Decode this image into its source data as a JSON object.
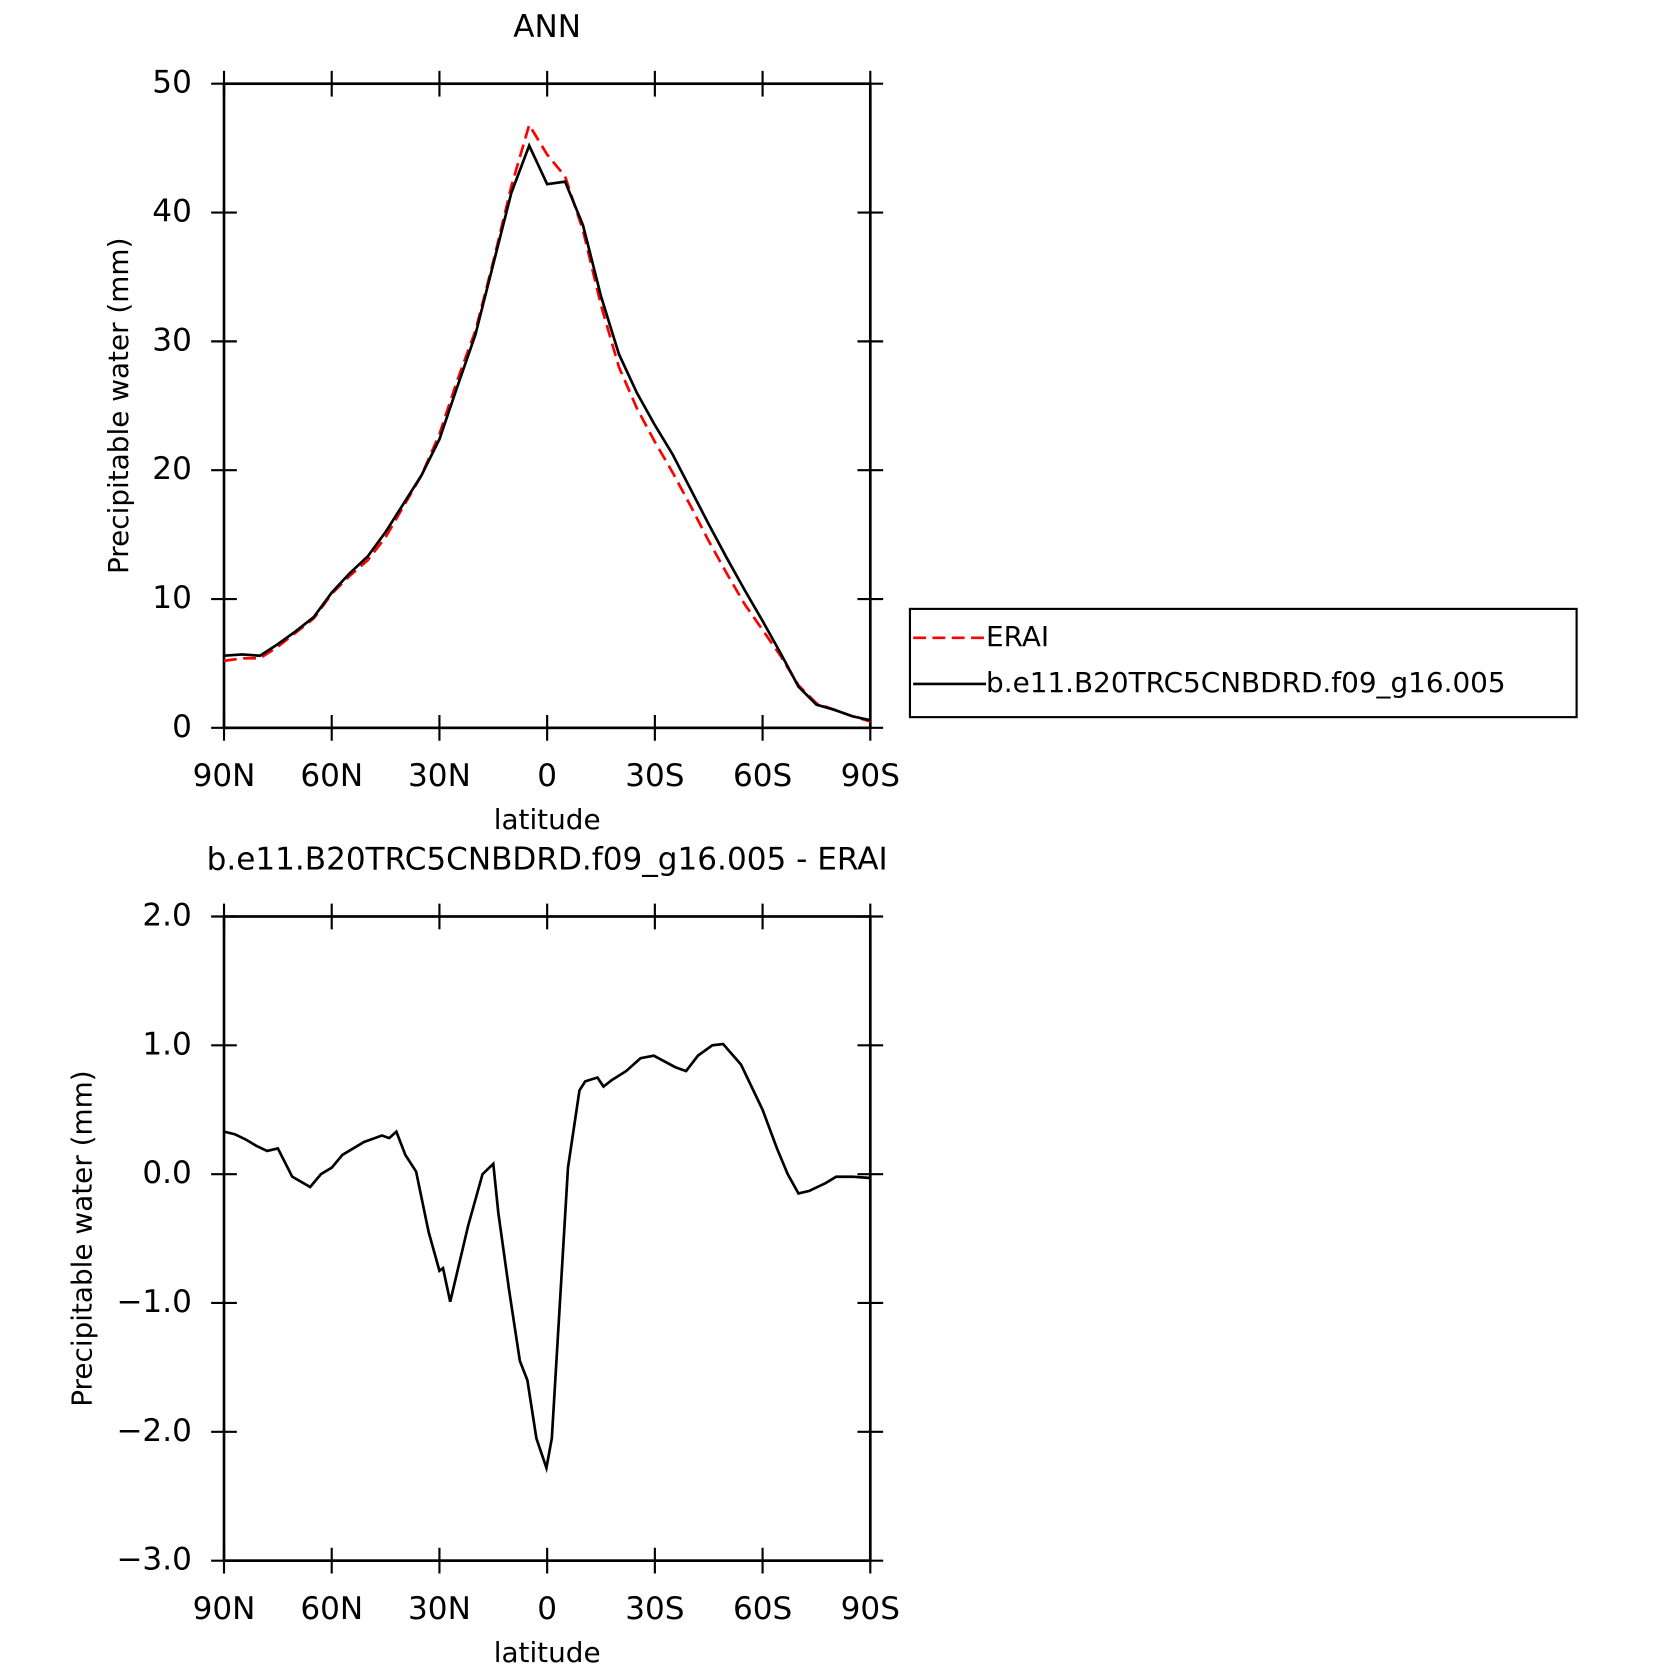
{
  "chart_data": [
    {
      "type": "line",
      "title": "ANN",
      "xlabel": "latitude",
      "ylabel": "Precipitable water (mm)",
      "x": [
        90,
        85,
        80,
        75,
        70,
        65,
        60,
        55,
        50,
        45,
        40,
        35,
        30,
        25,
        20,
        15,
        10,
        5,
        0,
        -5,
        -10,
        -15,
        -20,
        -25,
        -30,
        -35,
        -40,
        -45,
        -50,
        -55,
        -60,
        -65,
        -70,
        -75,
        -80,
        -85,
        -90
      ],
      "series": [
        {
          "name": "ERAI",
          "color": "#ff0000",
          "dash": true,
          "values": [
            5.2,
            5.4,
            5.4,
            6.3,
            7.4,
            8.5,
            10.4,
            11.8,
            13.0,
            14.8,
            17.2,
            19.6,
            22.8,
            27.0,
            30.8,
            36.2,
            42.0,
            46.8,
            44.5,
            42.8,
            38.6,
            32.8,
            28.0,
            24.8,
            22.2,
            19.8,
            17.2,
            14.5,
            12.0,
            9.6,
            7.6,
            5.6,
            3.3,
            1.9,
            1.4,
            0.9,
            0.5
          ]
        },
        {
          "name": "b.e11.B20TRC5CNBDRD.f09_g16.005",
          "color": "#000000",
          "dash": false,
          "values": [
            5.6,
            5.7,
            5.6,
            6.5,
            7.5,
            8.6,
            10.5,
            12.0,
            13.3,
            15.2,
            17.4,
            19.6,
            22.4,
            26.5,
            30.5,
            36.0,
            41.5,
            45.2,
            42.2,
            42.4,
            39.0,
            33.5,
            29.0,
            26.0,
            23.5,
            21.2,
            18.5,
            15.8,
            13.2,
            10.7,
            8.3,
            5.8,
            3.2,
            1.8,
            1.4,
            0.9,
            0.6
          ]
        }
      ],
      "xlim": [
        90,
        -90
      ],
      "xticks": [
        {
          "value": 90,
          "label": "90N"
        },
        {
          "value": 60,
          "label": "60N"
        },
        {
          "value": 30,
          "label": "30N"
        },
        0,
        {
          "value": -30,
          "label": "30S"
        },
        {
          "value": -60,
          "label": "60S"
        },
        {
          "value": -90,
          "label": "90S"
        }
      ],
      "ylim": [
        0,
        50
      ],
      "yticks": [
        0,
        10,
        20,
        30,
        40,
        50
      ],
      "legend": "right"
    },
    {
      "type": "line",
      "title": "b.e11.B20TRC5CNBDRD.f09_g16.005 - ERAI",
      "xlabel": "latitude",
      "ylabel": "Precipitable water (mm)",
      "x": [
        90,
        87,
        84,
        81,
        78,
        75,
        71,
        66,
        63,
        60,
        57,
        51,
        46,
        44,
        42,
        39.5,
        36.5,
        33,
        30,
        29,
        27,
        22,
        18,
        15,
        13.6,
        10.6,
        7.6,
        5.5,
        3,
        0.2,
        -1.3,
        -5.8,
        -9,
        -10.6,
        -14,
        -15.7,
        -18,
        -22,
        -26,
        -29.7,
        -35.7,
        -38.7,
        -42,
        -46,
        -49,
        -54,
        -60,
        -64,
        -67,
        -70,
        -73,
        -77.5,
        -80.5,
        -85,
        -90
      ],
      "series": [
        {
          "name": "b.e11.B20TRC5CNBDRD.f09_g16.005 - ERAI",
          "color": "#000000",
          "dash": false,
          "values": [
            0.33,
            0.31,
            0.27,
            0.22,
            0.18,
            0.2,
            -0.02,
            -0.1,
            0.0,
            0.05,
            0.15,
            0.25,
            0.3,
            0.28,
            0.33,
            0.15,
            0.02,
            -0.45,
            -0.75,
            -0.73,
            -0.99,
            -0.4,
            0.0,
            0.08,
            -0.3,
            -0.9,
            -1.45,
            -1.6,
            -2.05,
            -2.28,
            -2.05,
            0.05,
            0.65,
            0.72,
            0.75,
            0.68,
            0.73,
            0.8,
            0.9,
            0.92,
            0.83,
            0.8,
            0.92,
            1.0,
            1.01,
            0.85,
            0.5,
            0.2,
            0.0,
            -0.15,
            -0.13,
            -0.07,
            -0.02,
            -0.02,
            -0.03
          ]
        }
      ],
      "xlim": [
        90,
        -90
      ],
      "xticks": [
        {
          "value": 90,
          "label": "90N"
        },
        {
          "value": 60,
          "label": "60N"
        },
        {
          "value": 30,
          "label": "30N"
        },
        0,
        {
          "value": -30,
          "label": "30S"
        },
        {
          "value": -60,
          "label": "60S"
        },
        {
          "value": -90,
          "label": "90S"
        }
      ],
      "ylim": [
        -3,
        2
      ],
      "yticks": [
        {
          "value": -3,
          "label": "−3.0"
        },
        {
          "value": -2,
          "label": "−2.0"
        },
        {
          "value": -1,
          "label": "−1.0"
        },
        {
          "value": 0,
          "label": "0.0"
        },
        {
          "value": 1,
          "label": "1.0"
        },
        {
          "value": 2,
          "label": "2.0"
        }
      ]
    }
  ]
}
